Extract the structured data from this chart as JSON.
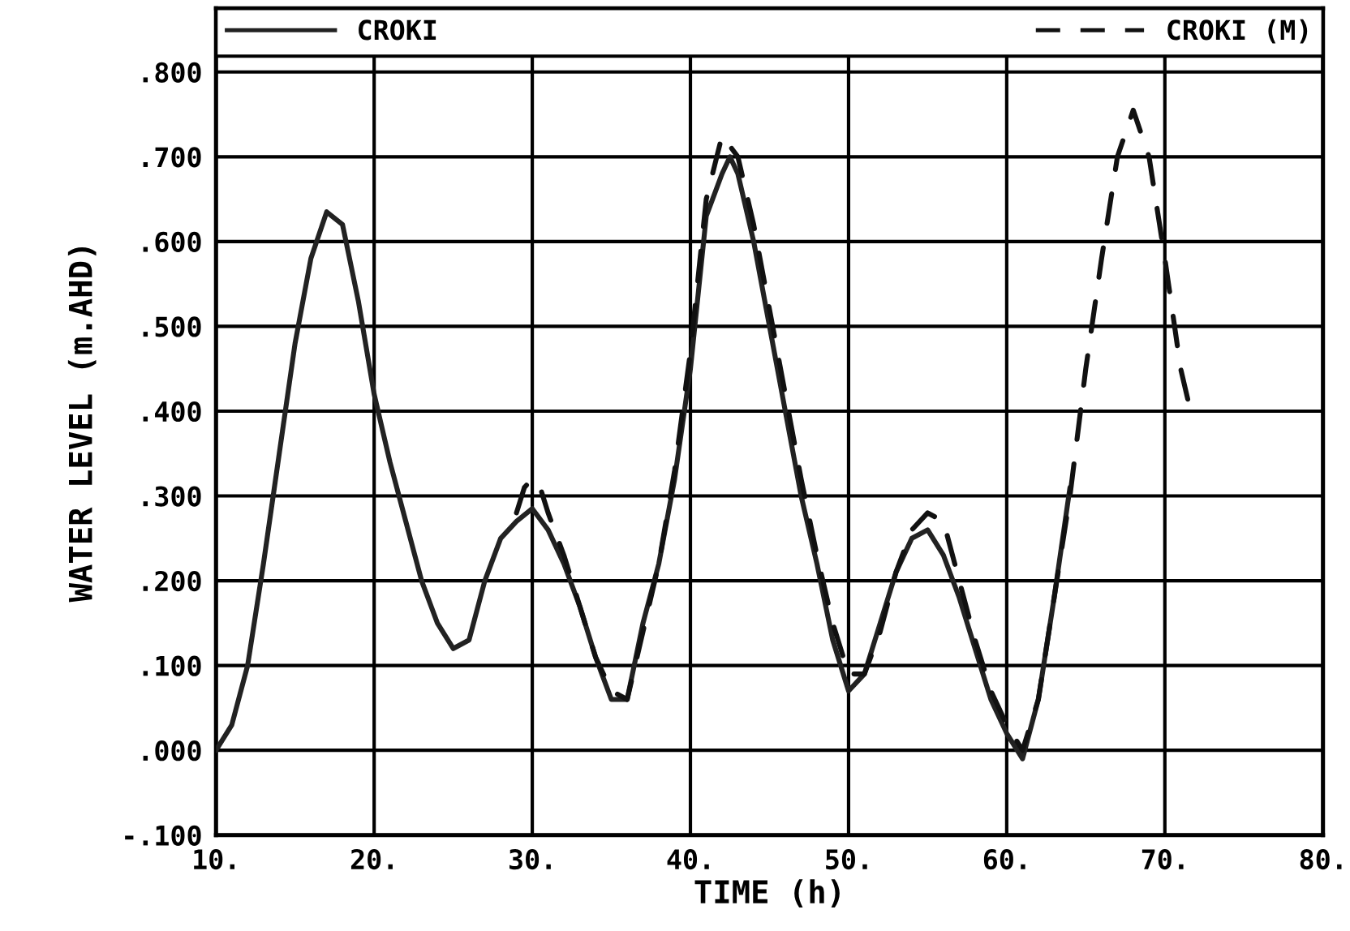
{
  "chart_data": {
    "type": "line",
    "xlabel": "TIME (h)",
    "ylabel": "WATER LEVEL (m.AHD)",
    "xlim": [
      10,
      80
    ],
    "ylim": [
      -0.1,
      0.875
    ],
    "xticks": [
      {
        "value": 10,
        "label": "10."
      },
      {
        "value": 20,
        "label": "20."
      },
      {
        "value": 30,
        "label": "30."
      },
      {
        "value": 40,
        "label": "40."
      },
      {
        "value": 50,
        "label": "50."
      },
      {
        "value": 60,
        "label": "60."
      },
      {
        "value": 70,
        "label": "70."
      },
      {
        "value": 80,
        "label": "80."
      }
    ],
    "yticks": [
      {
        "value": -0.1,
        "label": "-.100"
      },
      {
        "value": 0,
        "label": ".000"
      },
      {
        "value": 0.1,
        "label": ".100"
      },
      {
        "value": 0.2,
        "label": ".200"
      },
      {
        "value": 0.3,
        "label": ".300"
      },
      {
        "value": 0.4,
        "label": ".400"
      },
      {
        "value": 0.5,
        "label": ".500"
      },
      {
        "value": 0.6,
        "label": ".600"
      },
      {
        "value": 0.7,
        "label": ".700"
      },
      {
        "value": 0.8,
        "label": ".800"
      }
    ],
    "grid": true,
    "legend": "top",
    "marker": "none",
    "series": [
      {
        "name": "CROKI",
        "color": "#222222",
        "line_style": "solid",
        "x": [
          10,
          11,
          12,
          13,
          14,
          15,
          16,
          17,
          18,
          19,
          20,
          21,
          22,
          23,
          24,
          25,
          26,
          27,
          28,
          29,
          30,
          31,
          32,
          33,
          34,
          35,
          36,
          37,
          38,
          39,
          40,
          41,
          42,
          42.5,
          43,
          44,
          45,
          46,
          47,
          48,
          49,
          50,
          51,
          52,
          53,
          54,
          55,
          56,
          57,
          58,
          59,
          60,
          61,
          62,
          63,
          64
        ],
        "values": [
          0.0,
          0.03,
          0.1,
          0.22,
          0.35,
          0.48,
          0.58,
          0.635,
          0.62,
          0.53,
          0.42,
          0.34,
          0.27,
          0.2,
          0.15,
          0.12,
          0.13,
          0.2,
          0.25,
          0.27,
          0.285,
          0.26,
          0.22,
          0.17,
          0.11,
          0.06,
          0.06,
          0.15,
          0.22,
          0.32,
          0.45,
          0.63,
          0.68,
          0.7,
          0.68,
          0.6,
          0.5,
          0.4,
          0.3,
          0.22,
          0.13,
          0.07,
          0.09,
          0.15,
          0.21,
          0.25,
          0.26,
          0.23,
          0.18,
          0.12,
          0.06,
          0.02,
          -0.01,
          0.06,
          0.18,
          0.31
        ]
      },
      {
        "name": "CROKI (M)",
        "color": "#111111",
        "line_style": "dashed",
        "x": [
          29,
          29.5,
          30,
          30.5,
          31,
          32,
          33,
          34,
          35,
          36,
          37,
          38,
          39,
          40,
          41,
          42,
          43,
          44,
          45,
          46,
          47,
          48,
          49,
          50,
          51,
          52,
          53,
          54,
          55,
          56,
          57,
          58,
          59,
          60,
          61,
          62,
          63,
          64,
          65,
          66,
          67,
          68,
          69,
          70,
          71,
          71.5
        ],
        "values": [
          0.28,
          0.31,
          0.32,
          0.31,
          0.28,
          0.23,
          0.17,
          0.11,
          0.07,
          0.06,
          0.14,
          0.22,
          0.33,
          0.47,
          0.65,
          0.725,
          0.7,
          0.62,
          0.52,
          0.42,
          0.32,
          0.23,
          0.15,
          0.09,
          0.09,
          0.14,
          0.21,
          0.26,
          0.28,
          0.27,
          0.2,
          0.13,
          0.07,
          0.03,
          0.0,
          0.06,
          0.18,
          0.3,
          0.45,
          0.58,
          0.7,
          0.755,
          0.7,
          0.58,
          0.45,
          0.41
        ]
      }
    ]
  }
}
